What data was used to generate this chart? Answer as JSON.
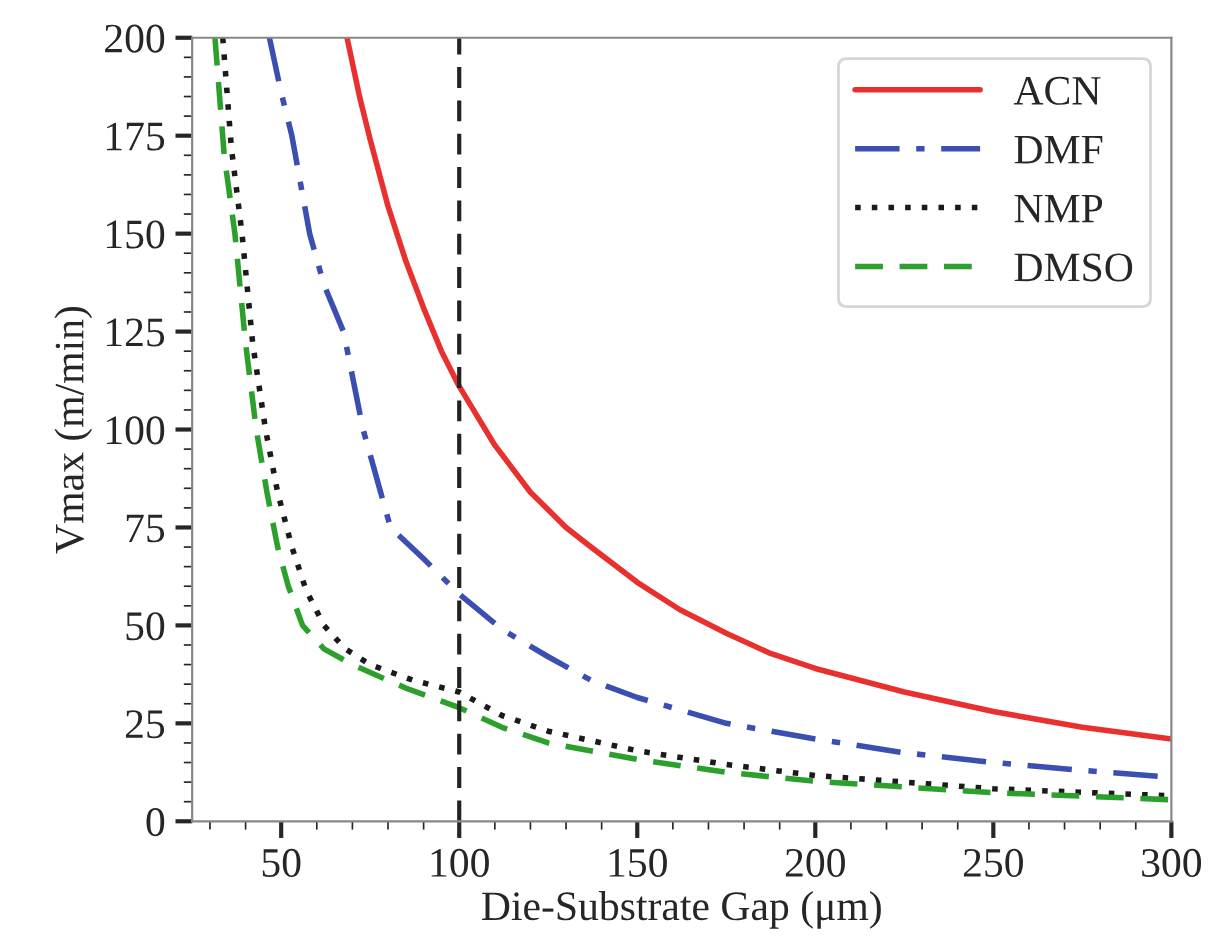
{
  "chart_data": {
    "type": "line",
    "xlabel": "Die-Substrate Gap (μm)",
    "ylabel": "Vmax (m/min)",
    "xlim": [
      25,
      300
    ],
    "xticks": [
      50,
      100,
      150,
      200,
      250,
      300
    ],
    "ylim": [
      0,
      200
    ],
    "yticks": [
      0,
      25,
      50,
      75,
      100,
      125,
      150,
      175,
      200
    ],
    "grid": false,
    "legend": "top right",
    "series": [
      {
        "name": "ACN",
        "color": "#e8312f",
        "line_style": "solid",
        "x": [
          68.5,
          72,
          75,
          80,
          85,
          90,
          95,
          100,
          110,
          120,
          130,
          137,
          150,
          162,
          175,
          187,
          200,
          225,
          250,
          275,
          300
        ],
        "values": [
          200,
          185,
          174,
          157,
          143,
          131,
          120,
          111,
          96,
          84,
          75,
          70,
          61,
          54,
          48,
          43,
          39,
          33,
          28,
          24,
          21
        ]
      },
      {
        "name": "DMF",
        "color": "#3a4fb0",
        "line_style": "dashdot",
        "x": [
          46.7,
          50,
          53,
          58,
          62,
          67.5,
          73,
          80.7,
          90,
          100,
          112,
          125,
          137,
          150,
          175,
          200,
          225,
          250,
          275,
          300
        ],
        "values": [
          200,
          186,
          175,
          150,
          137,
          125,
          100,
          75,
          67,
          58,
          49,
          42,
          36,
          31.6,
          25,
          21,
          17.5,
          15,
          13,
          11.2
        ]
      },
      {
        "name": "NMP",
        "color": "#1a1a1a",
        "line_style": "dotted",
        "x": [
          33.6,
          36,
          39,
          42,
          45.6,
          49,
          53,
          57,
          62,
          68,
          75,
          87,
          100,
          112,
          125,
          150,
          175,
          200,
          250,
          300
        ],
        "values": [
          200,
          172,
          150,
          122,
          100,
          84,
          70,
          59,
          50,
          44,
          40,
          36,
          33,
          27,
          23,
          18,
          14.5,
          11.7,
          8.3,
          6.5
        ]
      },
      {
        "name": "DMSO",
        "color": "#2ca02c",
        "line_style": "dashed",
        "x": [
          31.4,
          34,
          37,
          40,
          43,
          46,
          49,
          52,
          56,
          62,
          70,
          85,
          100,
          112,
          125,
          150,
          175,
          200,
          250,
          300
        ],
        "values": [
          200,
          170,
          150,
          122,
          100,
          84,
          70,
          60,
          50,
          44,
          40,
          34,
          29,
          24,
          20,
          15.8,
          12.5,
          10.2,
          7.3,
          5.5
        ]
      }
    ],
    "ref_lines": [
      {
        "axis": "x",
        "value": 100,
        "color": "#222222",
        "line_style": "dashed"
      }
    ]
  }
}
